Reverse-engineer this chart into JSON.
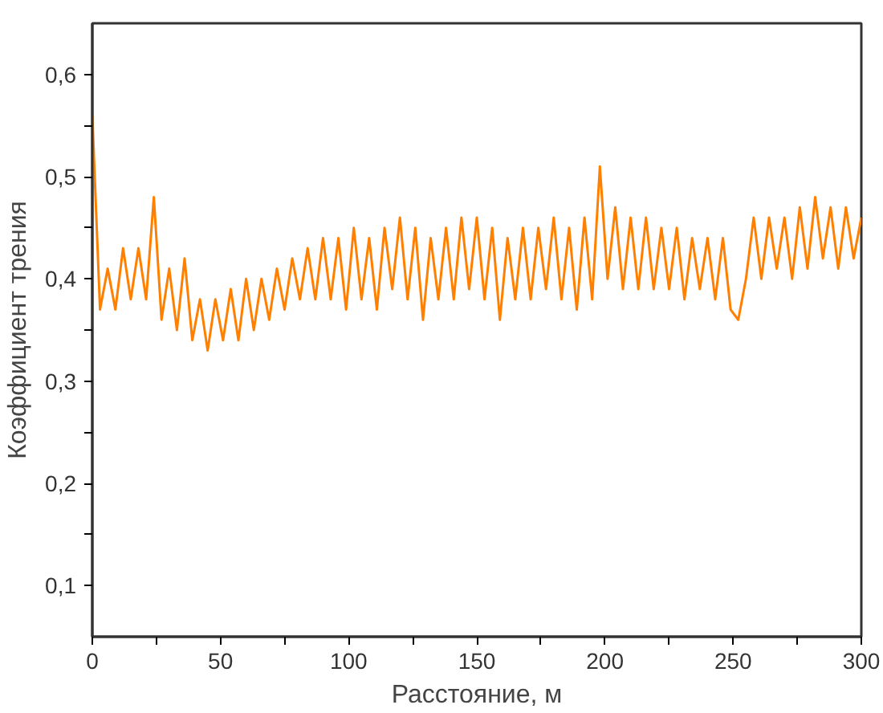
{
  "chart_data": {
    "type": "line",
    "xlabel": "Расстояние, м",
    "ylabel": "Коэффициент трения",
    "x": [
      0,
      3,
      6,
      9,
      12,
      15,
      18,
      21,
      24,
      27,
      30,
      33,
      36,
      39,
      42,
      45,
      48,
      51,
      54,
      57,
      60,
      63,
      66,
      69,
      72,
      75,
      78,
      81,
      84,
      87,
      90,
      93,
      96,
      99,
      102,
      105,
      108,
      111,
      114,
      117,
      120,
      123,
      126,
      129,
      132,
      135,
      138,
      141,
      144,
      147,
      150,
      153,
      156,
      159,
      162,
      165,
      168,
      171,
      174,
      177,
      180,
      183,
      186,
      189,
      192,
      195,
      198,
      201,
      204,
      207,
      210,
      213,
      216,
      219,
      222,
      225,
      228,
      231,
      234,
      237,
      240,
      243,
      246,
      249,
      252,
      255,
      258,
      261,
      264,
      267,
      270,
      273,
      276,
      279,
      282,
      285,
      288,
      291,
      294,
      297,
      300
    ],
    "series": [
      {
        "color": "#ff8000",
        "values": [
          0.56,
          0.37,
          0.41,
          0.37,
          0.43,
          0.38,
          0.43,
          0.38,
          0.48,
          0.36,
          0.41,
          0.35,
          0.42,
          0.34,
          0.38,
          0.33,
          0.38,
          0.34,
          0.39,
          0.34,
          0.4,
          0.35,
          0.4,
          0.36,
          0.41,
          0.37,
          0.42,
          0.38,
          0.43,
          0.38,
          0.44,
          0.38,
          0.44,
          0.37,
          0.45,
          0.38,
          0.44,
          0.37,
          0.45,
          0.39,
          0.46,
          0.38,
          0.45,
          0.36,
          0.44,
          0.38,
          0.45,
          0.38,
          0.46,
          0.39,
          0.46,
          0.38,
          0.45,
          0.36,
          0.44,
          0.38,
          0.45,
          0.38,
          0.45,
          0.39,
          0.46,
          0.38,
          0.45,
          0.37,
          0.46,
          0.38,
          0.51,
          0.4,
          0.47,
          0.39,
          0.46,
          0.39,
          0.46,
          0.39,
          0.45,
          0.39,
          0.45,
          0.38,
          0.44,
          0.39,
          0.44,
          0.38,
          0.44,
          0.37,
          0.36,
          0.4,
          0.46,
          0.4,
          0.46,
          0.41,
          0.46,
          0.4,
          0.47,
          0.41,
          0.48,
          0.42,
          0.47,
          0.41,
          0.47,
          0.42,
          0.46
        ]
      }
    ],
    "xlim": [
      0,
      300
    ],
    "ylim": [
      0.05,
      0.65
    ],
    "xticks": [
      0,
      {
        "value": 25,
        "label": null
      },
      50,
      {
        "value": 75,
        "label": null
      },
      100,
      {
        "value": 125,
        "label": null
      },
      150,
      {
        "value": 175,
        "label": null
      },
      200,
      {
        "value": 225,
        "label": null
      },
      250,
      {
        "value": 275,
        "label": null
      },
      300
    ],
    "yticks": [
      {
        "value": 0.1,
        "label": "0,1"
      },
      {
        "value": 0.15,
        "label": null
      },
      {
        "value": 0.2,
        "label": "0,2"
      },
      {
        "value": 0.25,
        "label": null
      },
      {
        "value": 0.3,
        "label": "0,3"
      },
      {
        "value": 0.35,
        "label": null
      },
      {
        "value": 0.4,
        "label": "0,4"
      },
      {
        "value": 0.45,
        "label": null
      },
      {
        "value": 0.5,
        "label": "0,5"
      },
      {
        "value": 0.55,
        "label": null
      },
      {
        "value": 0.6,
        "label": "0,6"
      }
    ],
    "grid": false,
    "marker": "none",
    "line_style": "solid"
  }
}
